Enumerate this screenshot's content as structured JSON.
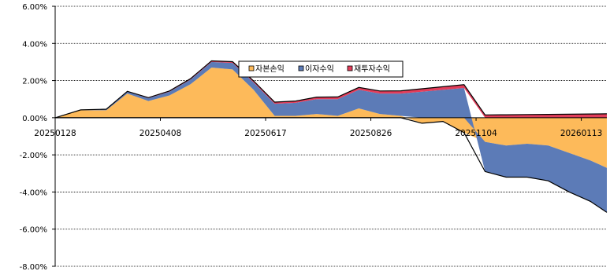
{
  "chart_data": {
    "type": "area",
    "stacked": true,
    "grid": true,
    "legend_position": "top-center",
    "ylim": [
      -0.08,
      0.06
    ],
    "yticks": [
      0.06,
      0.04,
      0.02,
      0.0,
      -0.02,
      -0.04,
      -0.06,
      -0.08
    ],
    "ytick_labels": [
      "6.00%",
      "4.00%",
      "2.00%",
      "0.00%",
      "-2.00%",
      "-4.00%",
      "-6.00%",
      "-8.00%"
    ],
    "x_dates": [
      "20250128",
      "20250214",
      "20250303",
      "20250317",
      "20250331",
      "20250414",
      "20250428",
      "20250512",
      "20250526",
      "20250609",
      "20250623",
      "20250707",
      "20250721",
      "20250804",
      "20250818",
      "20250901",
      "20250915",
      "20250929",
      "20251013",
      "20251027",
      "20251110",
      "20251124",
      "20251208",
      "20251222",
      "20260105",
      "20260119",
      "20260130"
    ],
    "x_tick_labels": [
      "20250128",
      "20250408",
      "20250617",
      "20250826",
      "20251104",
      "20260113"
    ],
    "x_tick_dates": [
      "20250128",
      "20250408",
      "20250617",
      "20250826",
      "20251104",
      "20260113"
    ],
    "series": [
      {
        "name": "자본손익",
        "color": "#FDBA5A",
        "values": [
          0.0,
          0.004,
          0.004,
          0.013,
          0.009,
          0.012,
          0.018,
          0.027,
          0.026,
          0.015,
          0.001,
          0.001,
          0.002,
          0.001,
          0.005,
          0.002,
          0.001,
          -0.003,
          -0.002,
          -0.008,
          -0.013,
          -0.015,
          -0.014,
          -0.015,
          -0.019,
          -0.023,
          -0.027
        ]
      },
      {
        "name": "이자수익",
        "color": "#5C7BB7",
        "values": [
          0.0,
          0.0002,
          0.0005,
          0.001,
          0.0015,
          0.002,
          0.0025,
          0.003,
          0.0035,
          0.004,
          0.0065,
          0.007,
          0.008,
          0.009,
          0.01,
          0.011,
          0.012,
          0.014,
          0.015,
          0.016,
          -0.016,
          -0.017,
          -0.018,
          -0.019,
          -0.021,
          -0.022,
          -0.024
        ]
      },
      {
        "name": "재투자수익",
        "color": "#E23D5A",
        "values": [
          0.0,
          0.0,
          0.0001,
          0.0002,
          0.0003,
          0.0004,
          0.0005,
          0.0006,
          0.0007,
          0.0008,
          0.0009,
          0.001,
          0.0011,
          0.0012,
          0.0013,
          0.0014,
          0.0015,
          0.0016,
          0.0017,
          0.0018,
          0.0015,
          0.0016,
          0.0017,
          0.0018,
          0.0019,
          0.002,
          0.0021
        ]
      }
    ]
  }
}
